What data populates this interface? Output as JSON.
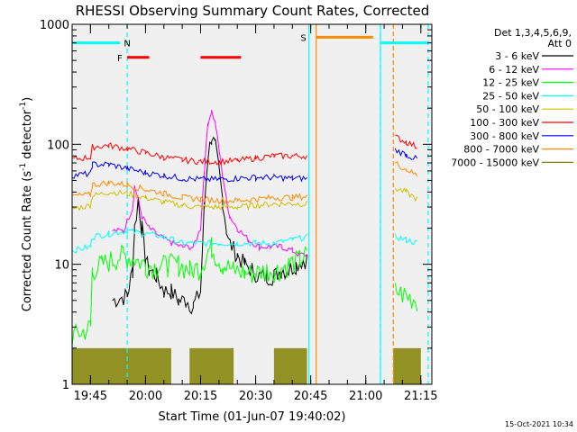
{
  "chart_data": {
    "type": "line",
    "title": "RHESSI Observing Summary Count Rates, Corrected",
    "xlabel": "Start Time (01-Jun-07 19:40:02)",
    "ylabel_main": "Corrected Count Rate (s",
    "ylabel_sup1": "-1",
    "ylabel_mid": " detector",
    "ylabel_sup2": "-1",
    "ylabel_end": ")",
    "yscale": "log",
    "ylim": [
      1,
      1000
    ],
    "y_ticks": [
      {
        "value": 1,
        "label": "1"
      },
      {
        "value": 10,
        "label": "10"
      },
      {
        "value": 100,
        "label": "100"
      },
      {
        "value": 1000,
        "label": "1000"
      }
    ],
    "xlim_min": [
      0,
      98
    ],
    "x_ticks": [
      {
        "value": 5,
        "label": "19:45"
      },
      {
        "value": 20,
        "label": "20:00"
      },
      {
        "value": 35,
        "label": "20:15"
      },
      {
        "value": 50,
        "label": "20:30"
      },
      {
        "value": 65,
        "label": "20:45"
      },
      {
        "value": 80,
        "label": "21:00"
      },
      {
        "value": 95,
        "label": "21:15"
      }
    ],
    "legend_header_1": "Det 1,3,4,5,6,9,",
    "legend_header_2": "Att 0",
    "legend_position": "top-right",
    "series": [
      {
        "name": "3 - 6 keV",
        "color": "#000000",
        "points": [
          [
            11,
            5
          ],
          [
            15,
            5.5
          ],
          [
            16.5,
            9
          ],
          [
            17,
            20
          ],
          [
            18,
            35
          ],
          [
            19,
            20
          ],
          [
            20,
            11
          ],
          [
            21,
            9
          ],
          [
            23,
            8
          ],
          [
            25,
            6
          ],
          [
            27,
            6
          ],
          [
            29,
            5
          ],
          [
            31,
            5
          ],
          [
            33,
            4.5
          ],
          [
            35,
            6
          ],
          [
            36,
            30
          ],
          [
            37,
            80
          ],
          [
            38,
            115
          ],
          [
            39,
            95
          ],
          [
            40,
            60
          ],
          [
            41,
            35
          ],
          [
            42,
            20
          ],
          [
            43,
            15
          ],
          [
            45,
            12
          ],
          [
            47,
            10
          ],
          [
            49,
            9
          ],
          [
            51,
            8
          ],
          [
            53,
            8
          ],
          [
            55,
            8
          ],
          [
            57,
            9
          ],
          [
            59,
            9
          ],
          [
            61,
            10
          ],
          [
            63,
            11
          ],
          [
            64,
            11
          ]
        ],
        "post": []
      },
      {
        "name": "6 - 12 keV",
        "color": "#ff00ff",
        "points": [
          [
            11,
            19
          ],
          [
            14,
            19
          ],
          [
            16.5,
            30
          ],
          [
            17,
            45
          ],
          [
            18,
            35
          ],
          [
            19,
            25
          ],
          [
            21,
            20
          ],
          [
            24,
            17
          ],
          [
            27,
            15
          ],
          [
            30,
            14
          ],
          [
            33,
            14
          ],
          [
            35,
            20
          ],
          [
            36,
            60
          ],
          [
            37,
            150
          ],
          [
            38,
            190
          ],
          [
            39,
            150
          ],
          [
            40,
            90
          ],
          [
            41,
            55
          ],
          [
            42,
            35
          ],
          [
            43,
            25
          ],
          [
            45,
            20
          ],
          [
            48,
            16
          ],
          [
            51,
            14
          ],
          [
            54,
            14
          ],
          [
            57,
            14
          ],
          [
            60,
            13
          ],
          [
            62,
            12
          ],
          [
            64,
            12
          ]
        ],
        "post": []
      },
      {
        "name": "12 - 25 keV",
        "color": "#00ff00",
        "points": [
          [
            0,
            2.5
          ],
          [
            3,
            2.8
          ],
          [
            5,
            3
          ],
          [
            5.5,
            9
          ],
          [
            8,
            10
          ],
          [
            11,
            11
          ],
          [
            14,
            12
          ],
          [
            17,
            11
          ],
          [
            20,
            10
          ],
          [
            23,
            9.5
          ],
          [
            26,
            10
          ],
          [
            29,
            10
          ],
          [
            32,
            9
          ],
          [
            35,
            9.5
          ],
          [
            37,
            13
          ],
          [
            38,
            14
          ],
          [
            39,
            12
          ],
          [
            41,
            10
          ],
          [
            44,
            9
          ],
          [
            47,
            8.5
          ],
          [
            50,
            8.5
          ],
          [
            53,
            9
          ],
          [
            56,
            9
          ],
          [
            59,
            10
          ],
          [
            62,
            11
          ],
          [
            64,
            12
          ]
        ],
        "post": [
          [
            88,
            6
          ],
          [
            91,
            5.5
          ],
          [
            94,
            5
          ]
        ]
      },
      {
        "name": "25 - 50 keV",
        "color": "#00ffff",
        "points": [
          [
            0,
            13
          ],
          [
            5,
            14
          ],
          [
            5.5,
            17
          ],
          [
            10,
            18
          ],
          [
            15,
            19
          ],
          [
            20,
            18
          ],
          [
            25,
            17
          ],
          [
            30,
            15
          ],
          [
            35,
            15
          ],
          [
            40,
            15
          ],
          [
            45,
            15
          ],
          [
            50,
            15
          ],
          [
            55,
            15
          ],
          [
            60,
            16
          ],
          [
            64,
            17
          ]
        ],
        "post": [
          [
            88,
            17
          ],
          [
            91,
            16
          ],
          [
            94,
            15
          ]
        ]
      },
      {
        "name": "50 - 100 keV",
        "color": "#d4c000",
        "points": [
          [
            0,
            29
          ],
          [
            5,
            31
          ],
          [
            5.5,
            37
          ],
          [
            10,
            40
          ],
          [
            15,
            39
          ],
          [
            20,
            36
          ],
          [
            25,
            33
          ],
          [
            30,
            31
          ],
          [
            35,
            30
          ],
          [
            40,
            30
          ],
          [
            45,
            30
          ],
          [
            50,
            31
          ],
          [
            55,
            32
          ],
          [
            60,
            32
          ],
          [
            64,
            32
          ]
        ],
        "post": [
          [
            88,
            43
          ],
          [
            91,
            40
          ],
          [
            94,
            35
          ]
        ]
      },
      {
        "name": "100 - 300 keV",
        "color": "#ff0000",
        "points": [
          [
            0,
            75
          ],
          [
            5,
            78
          ],
          [
            5.5,
            95
          ],
          [
            10,
            98
          ],
          [
            15,
            92
          ],
          [
            20,
            85
          ],
          [
            25,
            78
          ],
          [
            30,
            74
          ],
          [
            35,
            72
          ],
          [
            40,
            72
          ],
          [
            45,
            73
          ],
          [
            50,
            77
          ],
          [
            55,
            80
          ],
          [
            60,
            80
          ],
          [
            64,
            80
          ]
        ],
        "post": [
          [
            88,
            115
          ],
          [
            91,
            105
          ],
          [
            94,
            95
          ]
        ]
      },
      {
        "name": "300 - 800 keV",
        "color": "#0000ff",
        "points": [
          [
            0,
            55
          ],
          [
            5,
            57
          ],
          [
            5.5,
            68
          ],
          [
            10,
            68
          ],
          [
            15,
            63
          ],
          [
            20,
            58
          ],
          [
            25,
            55
          ],
          [
            30,
            52
          ],
          [
            35,
            51
          ],
          [
            40,
            51
          ],
          [
            45,
            52
          ],
          [
            50,
            53
          ],
          [
            55,
            53
          ],
          [
            60,
            52
          ],
          [
            64,
            52
          ]
        ],
        "post": [
          [
            88,
            90
          ],
          [
            91,
            82
          ],
          [
            94,
            75
          ]
        ]
      },
      {
        "name": "800 - 7000 keV",
        "color": "#ff8c00",
        "points": [
          [
            0,
            37
          ],
          [
            5,
            38
          ],
          [
            5.5,
            46
          ],
          [
            10,
            48
          ],
          [
            15,
            46
          ],
          [
            20,
            42
          ],
          [
            25,
            39
          ],
          [
            30,
            36
          ],
          [
            35,
            35
          ],
          [
            40,
            34
          ],
          [
            45,
            34
          ],
          [
            50,
            35
          ],
          [
            55,
            36
          ],
          [
            60,
            36
          ],
          [
            64,
            37
          ]
        ],
        "post": [
          [
            88,
            70
          ],
          [
            91,
            62
          ],
          [
            94,
            55
          ]
        ]
      },
      {
        "name": "7000 - 15000 keV",
        "color": "#808000",
        "points": [],
        "post": []
      }
    ],
    "olive_blocks": [
      [
        0,
        27
      ],
      [
        32,
        44
      ],
      [
        55,
        64
      ],
      [
        87.5,
        95
      ]
    ],
    "state_bars": [
      {
        "label": "N",
        "color": "#00ffff",
        "level": 700,
        "segments": [
          [
            0,
            13
          ],
          [
            84,
            97
          ]
        ],
        "label_at": 15
      },
      {
        "label": "F",
        "color": "#ff0000",
        "level": 530,
        "segments": [
          [
            15,
            21
          ],
          [
            35,
            46
          ]
        ],
        "label_at": 13
      },
      {
        "label": "S",
        "color": "#ff8c00",
        "level": 780,
        "segments": [
          [
            66.5,
            82
          ]
        ],
        "label_at": 63
      }
    ],
    "orange_verticals": [
      66.5,
      87.5
    ],
    "cyan_dashed_verticals": [
      15,
      84,
      97
    ],
    "cyan_solid_verticals": [
      64.5,
      84
    ]
  },
  "footer": {
    "timestamp": "15-Oct-2021 10:34"
  }
}
